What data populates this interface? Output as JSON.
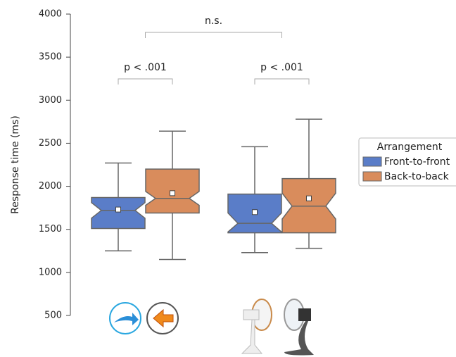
{
  "chart_data": {
    "type": "boxplot",
    "y_label": "Response time (ms)",
    "categories": [
      null,
      null
    ],
    "ylim": [
      500,
      4000
    ],
    "yticks": [
      500,
      1000,
      1500,
      2000,
      2500,
      3000,
      3500,
      4000
    ],
    "legend_title": "Arrangement",
    "legend": "right",
    "series": [
      {
        "name": "Front-to-front",
        "color": "#5a7dc8",
        "whislo": [
          1250,
          1230
        ],
        "q1": [
          1510,
          1460
        ],
        "med": [
          1720,
          1570
        ],
        "q3": [
          1870,
          1910
        ],
        "whishi": [
          2270,
          2460
        ],
        "notch_lo": [
          1630,
          1470
        ],
        "notch_hi": [
          1810,
          1690
        ],
        "mean": [
          1730,
          1700
        ]
      },
      {
        "name": "Back-to-back",
        "color": "#d98c5c",
        "whislo": [
          1150,
          1280
        ],
        "q1": [
          1690,
          1460
        ],
        "med": [
          1860,
          1770
        ],
        "q3": [
          2200,
          2090
        ],
        "whishi": [
          2640,
          2780
        ],
        "notch_lo": [
          1780,
          1620
        ],
        "notch_hi": [
          1940,
          1920
        ],
        "mean": [
          1920,
          1860
        ]
      }
    ],
    "annotations": [
      "p < .001",
      "p < .001",
      "n.s."
    ]
  }
}
